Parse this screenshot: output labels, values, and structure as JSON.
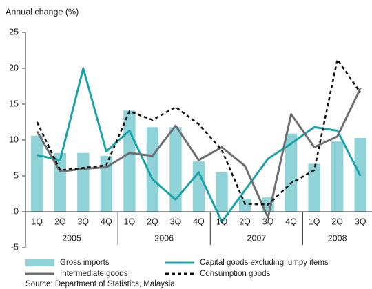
{
  "chart_data": {
    "type": "bar_line",
    "title": "Annual change (%)",
    "source": "Source: Department of Statistics, Malaysia",
    "groups": [
      {
        "name": "2005",
        "categories": [
          "1Q",
          "2Q",
          "3Q",
          "4Q"
        ]
      },
      {
        "name": "2006",
        "categories": [
          "1Q",
          "2Q",
          "3Q",
          "4Q"
        ]
      },
      {
        "name": "2007",
        "categories": [
          "1Q",
          "2Q",
          "3Q",
          "4Q"
        ]
      },
      {
        "name": "2008",
        "categories": [
          "1Q",
          "2Q",
          "3Q"
        ]
      }
    ],
    "ylim": [
      -5,
      25
    ],
    "yticks": [
      -5,
      0,
      5,
      10,
      15,
      20,
      25
    ],
    "series": [
      {
        "name": "Gross imports",
        "kind": "bar",
        "color": "#8fd3d8",
        "values": [
          10.6,
          8.2,
          8.2,
          7.8,
          14.1,
          11.8,
          11.8,
          7.0,
          5.5,
          1.8,
          2.0,
          10.9,
          6.7,
          9.8,
          10.3
        ]
      },
      {
        "name": "Capital goods excluding lumpy items",
        "kind": "line",
        "color": "#1aa3a8",
        "dash": false,
        "values": [
          7.9,
          7.2,
          20.0,
          8.4,
          11.3,
          4.5,
          1.7,
          5.5,
          -1.4,
          3.0,
          7.4,
          9.5,
          11.8,
          11.3,
          5.0
        ]
      },
      {
        "name": "Intermediate goods",
        "kind": "line",
        "color": "#6d6e71",
        "dash": false,
        "values": [
          11.2,
          5.6,
          6.0,
          6.2,
          8.2,
          7.8,
          12.0,
          7.2,
          9.0,
          6.4,
          -0.8,
          13.6,
          9.0,
          10.5,
          17.2
        ]
      },
      {
        "name": "Consumption goods",
        "kind": "line",
        "color": "#111111",
        "dash": true,
        "values": [
          12.5,
          5.8,
          6.1,
          6.5,
          14.0,
          12.8,
          14.6,
          12.2,
          8.6,
          1.1,
          1.0,
          4.0,
          5.8,
          21.2,
          16.6
        ]
      }
    ]
  }
}
